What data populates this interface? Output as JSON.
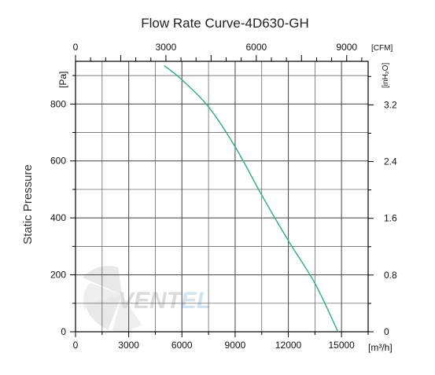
{
  "chart_data": {
    "type": "line",
    "title": "Flow Rate Curve-4D630-GH",
    "xlabel": "",
    "ylabel": "Static Pressure",
    "x_unit_bottom": "[m³/h]",
    "x_unit_top": "[CFM]",
    "y_unit_left": "[Pa]",
    "y_unit_right": "[inH₂O]",
    "xlim": [
      0,
      16500
    ],
    "ylim": [
      0,
      950
    ],
    "x_ticks_bottom": [
      0,
      3000,
      6000,
      9000,
      12000,
      15000
    ],
    "x_tick_labels_bottom": [
      "0",
      "3000",
      "6000",
      "9000",
      "12000",
      "15000"
    ],
    "x_ticks_top_cfm": [
      0,
      3000,
      6000,
      9000
    ],
    "x_tick_labels_top": [
      "0",
      "3000",
      "6000",
      "9000"
    ],
    "y_ticks_left": [
      0,
      200,
      400,
      600,
      800
    ],
    "y_tick_labels_left": [
      "0",
      "200",
      "400",
      "600",
      "800"
    ],
    "y_ticks_right_inh2o": [
      0,
      0.8,
      1.6,
      2.4,
      3.2
    ],
    "y_tick_labels_right": [
      "0",
      "0.8",
      "1.6",
      "2.4",
      "3.2"
    ],
    "grid": true,
    "series": [
      {
        "x": [
          5000,
          6000,
          7500,
          9000,
          10500,
          12000,
          13500,
          14800
        ],
        "y": [
          935,
          885,
          790,
          650,
          480,
          320,
          170,
          0
        ]
      }
    ],
    "colors": {
      "series": "#2bb07a",
      "grid": "#555555",
      "axis": "#000000"
    }
  },
  "watermark": {
    "logo_a": "VENT",
    "logo_b": "EL"
  }
}
